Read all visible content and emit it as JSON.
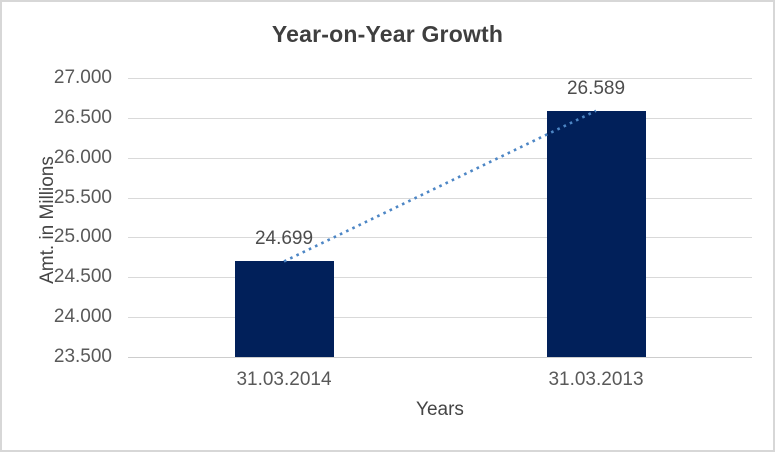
{
  "chart_data": {
    "type": "bar",
    "title": "Year-on-Year Growth",
    "xlabel": "Years",
    "ylabel": "Amt. in Millions",
    "categories": [
      "31.03.2014",
      "31.03.2013"
    ],
    "values": [
      24699,
      26589
    ],
    "data_labels": [
      "24.699",
      "26.589"
    ],
    "ylim": [
      23500,
      27000
    ],
    "yticks": [
      {
        "value": 23500,
        "label": "23.500"
      },
      {
        "value": 24000,
        "label": "24.000"
      },
      {
        "value": 24500,
        "label": "24.500"
      },
      {
        "value": 25000,
        "label": "25.000"
      },
      {
        "value": 25500,
        "label": "25.500"
      },
      {
        "value": 26000,
        "label": "26.000"
      },
      {
        "value": 26500,
        "label": "26.500"
      },
      {
        "value": 27000,
        "label": "27.000"
      }
    ],
    "grid": true,
    "legend": false,
    "trendline": {
      "style": "dotted",
      "from_value": 24699,
      "to_value": 26589,
      "color": "#4d86c5"
    },
    "colors": {
      "bar": "#01205a",
      "gridline": "#d9d9d9",
      "axis_line": "#cdcdcd",
      "frame_border": "#d7d7d7",
      "title_text": "#3f3f3f",
      "tick_text": "#595959",
      "background": "#ffffff"
    }
  }
}
